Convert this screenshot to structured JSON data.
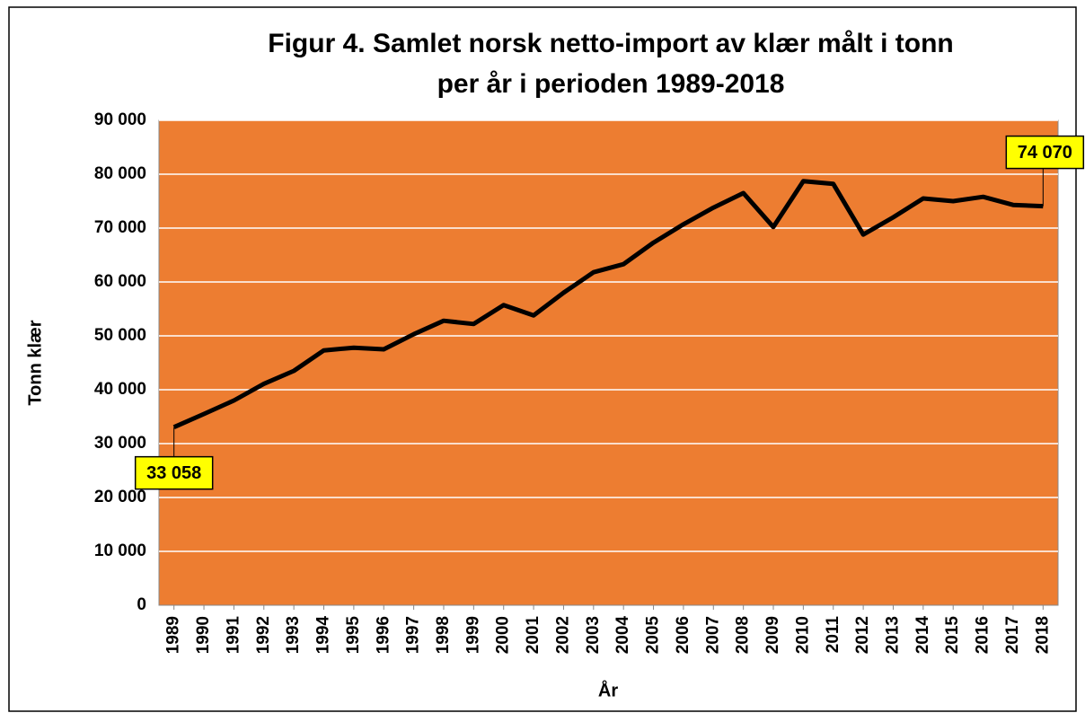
{
  "chart_data": {
    "type": "line",
    "title": [
      "Figur 4. Samlet norsk netto-import av klær målt i tonn",
      "per år i perioden 1989-2018"
    ],
    "x_label": "År",
    "y_label": "Tonn klær",
    "categories": [
      "1989",
      "1990",
      "1991",
      "1992",
      "1993",
      "1994",
      "1995",
      "1996",
      "1997",
      "1998",
      "1999",
      "2000",
      "2001",
      "2002",
      "2003",
      "2004",
      "2005",
      "2006",
      "2007",
      "2008",
      "2009",
      "2010",
      "2011",
      "2012",
      "2013",
      "2014",
      "2015",
      "2016",
      "2017",
      "2018"
    ],
    "values": [
      33058,
      35500,
      38000,
      41100,
      43500,
      47300,
      47800,
      47500,
      50300,
      52800,
      52200,
      55700,
      53800,
      58000,
      61800,
      63300,
      67300,
      70700,
      73800,
      76500,
      70200,
      78700,
      78200,
      68800,
      72000,
      75500,
      75000,
      75800,
      74300,
      74070
    ],
    "value_labels": [
      "33 058",
      null,
      null,
      null,
      null,
      null,
      null,
      null,
      null,
      null,
      null,
      null,
      null,
      null,
      null,
      null,
      null,
      null,
      null,
      null,
      null,
      null,
      null,
      null,
      null,
      null,
      null,
      null,
      null,
      "74 070"
    ],
    "color": "#000000",
    "plot_background": "#ED7D31",
    "label_background": "#FFFF00",
    "grid": true,
    "ylim": [
      0,
      90000
    ],
    "yticks": [
      0,
      {
        "value": 10000,
        "label": "10 000"
      },
      {
        "value": 20000,
        "label": "20 000"
      },
      {
        "value": 30000,
        "label": "30 000"
      },
      {
        "value": 40000,
        "label": "40 000"
      },
      {
        "value": 50000,
        "label": "50 000"
      },
      {
        "value": 60000,
        "label": "60 000"
      },
      {
        "value": 70000,
        "label": "70 000"
      },
      {
        "value": 80000,
        "label": "80 000"
      },
      {
        "value": 90000,
        "label": "90 000"
      }
    ]
  }
}
